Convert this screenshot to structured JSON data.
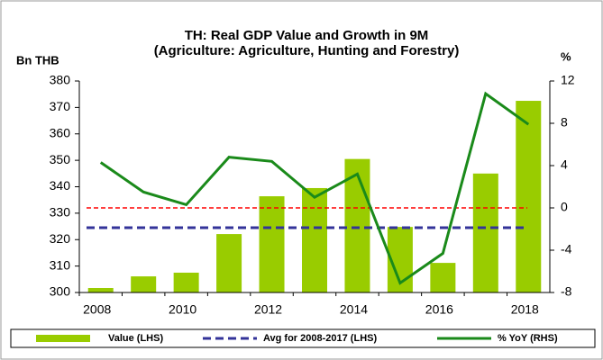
{
  "chart_data": {
    "type": "bar_line",
    "title": "TH: Real GDP Value and Growth in 9M",
    "subtitle": "(Agriculture: Agriculture, Hunting and Forestry)",
    "ylabel": "Bn THB",
    "y2label": "%",
    "categories": [
      "2008",
      null,
      "2010",
      null,
      "2012",
      null,
      "2014",
      null,
      "2016",
      null,
      "2018"
    ],
    "series": [
      {
        "name": "Value (LHS)",
        "color": "#99cc00",
        "type": "bar",
        "values": [
          301.7,
          306.1,
          307.5,
          322.1,
          336.4,
          339.5,
          350.5,
          324.8,
          311.2,
          345,
          372.5
        ]
      },
      {
        "name": "% YoY (RHS)",
        "color": "#1a8a1a",
        "type": "line",
        "axis": "y2",
        "values": [
          4.3,
          1.5,
          0.3,
          4.8,
          4.4,
          1.0,
          3.2,
          -7.1,
          -4.3,
          10.8,
          7.9
        ]
      }
    ],
    "average": {
      "name": "Avg for 2008-2017 (LHS)",
      "color": "#333399",
      "value": 324.5
    },
    "y2_reference_line": {
      "value": 0,
      "color": "#ff0000"
    },
    "ylim": [
      300,
      380
    ],
    "yticks": [
      300,
      310,
      320,
      330,
      340,
      350,
      360,
      370,
      380
    ],
    "y2lim": [
      -8,
      12
    ],
    "y2ticks": [
      -8,
      -4,
      0,
      4,
      8,
      12
    ],
    "legend": "bottom"
  }
}
